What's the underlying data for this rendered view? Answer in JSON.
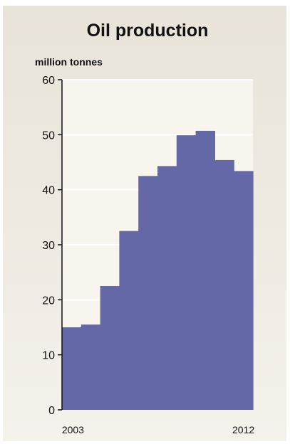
{
  "chart_data": {
    "type": "bar",
    "title": "Oil production",
    "ylabel": "million tonnes",
    "xlabel": "",
    "ylim": [
      0,
      60
    ],
    "yticks": [
      0,
      10,
      20,
      30,
      40,
      50,
      60
    ],
    "x_tick_labels": [
      "2003",
      "2012"
    ],
    "categories": [
      "2003",
      "2004",
      "2005",
      "2006",
      "2007",
      "2008",
      "2009",
      "2010",
      "2011",
      "2012"
    ],
    "values": [
      15.0,
      15.5,
      22.5,
      32.5,
      42.5,
      44.3,
      49.9,
      50.7,
      45.4,
      43.4
    ],
    "grid": "horizontal",
    "bar_color": "#6568a6",
    "plot_background": "#f8f5ef"
  }
}
